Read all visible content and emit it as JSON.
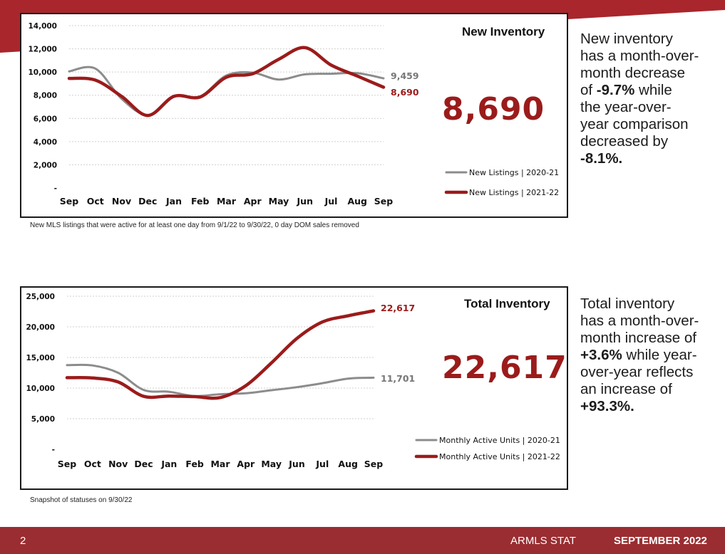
{
  "colors": {
    "accent_red": "#9b1b1b",
    "series_gray": "#8c8c8c",
    "band_red": "#a8262c",
    "footer_red": "#9a2d31"
  },
  "footer": {
    "page_number": "2",
    "brand": "ARMLS STAT",
    "month": "SEPTEMBER 2022"
  },
  "new_inventory": {
    "title": "New Inventory",
    "big_value": "8,690",
    "footnote": "New MLS listings that were active for at least one day from 9/1/22 to 9/30/22, 0 day DOM sales removed",
    "summary": {
      "line1": "New inventory",
      "line2": "has a month-over-",
      "line3": "month decrease",
      "line4_pre": "of ",
      "line4_bold": "-9.7%",
      "line4_post": " while",
      "line5": "the year-over-",
      "line6": "year comparison",
      "line7": "decreased by",
      "line8_bold": "-8.1%."
    }
  },
  "total_inventory": {
    "title": "Total Inventory",
    "big_value": "22,617",
    "footnote": "Snapshot of statuses on 9/30/22",
    "summary": {
      "line1": "Total inventory",
      "line2": "has a month-over-",
      "line3": "month increase of",
      "line4_bold": "+3.6%",
      "line4_post": " while year-",
      "line5": "over-year reflects",
      "line6": "an increase of",
      "line7_bold": "+93.3%."
    }
  },
  "chart_data": [
    {
      "type": "line",
      "title": "New Inventory",
      "categories": [
        "Sep",
        "Oct",
        "Nov",
        "Dec",
        "Jan",
        "Feb",
        "Mar",
        "Apr",
        "May",
        "Jun",
        "Jul",
        "Aug",
        "Sep"
      ],
      "ylim": [
        0,
        14000
      ],
      "yticks": [
        0,
        2000,
        4000,
        6000,
        8000,
        10000,
        12000,
        14000
      ],
      "ytick_labels": [
        "-",
        "2,000",
        "4,000",
        "6,000",
        "8,000",
        "10,000",
        "12,000",
        "14,000"
      ],
      "grid": true,
      "legend_position": "bottom-right",
      "series": [
        {
          "name": "New Listings | 2020-21",
          "color": "#8c8c8c",
          "values": [
            10050,
            10300,
            7700,
            6300,
            7900,
            7900,
            9700,
            9950,
            9350,
            9800,
            9850,
            9900,
            9459
          ],
          "end_label": "9,459"
        },
        {
          "name": "New Listings | 2021-22",
          "color": "#9b1b1b",
          "values": [
            9450,
            9300,
            7900,
            6250,
            7900,
            7850,
            9550,
            9850,
            11100,
            12100,
            10600,
            9650,
            8690
          ],
          "end_label": "8,690"
        }
      ]
    },
    {
      "type": "line",
      "title": "Total Inventory",
      "categories": [
        "Sep",
        "Oct",
        "Nov",
        "Dec",
        "Jan",
        "Feb",
        "Mar",
        "Apr",
        "May",
        "Jun",
        "Jul",
        "Aug",
        "Sep"
      ],
      "ylim": [
        0,
        25000
      ],
      "yticks": [
        0,
        5000,
        10000,
        15000,
        20000,
        25000
      ],
      "ytick_labels": [
        "-",
        "5,000",
        "10,000",
        "15,000",
        "20,000",
        "25,000"
      ],
      "grid": true,
      "legend_position": "bottom-right",
      "series": [
        {
          "name": "Monthly Active Units | 2020-21",
          "color": "#8c8c8c",
          "values": [
            13750,
            13700,
            12500,
            9700,
            9400,
            8700,
            9000,
            9150,
            9650,
            10150,
            10800,
            11550,
            11701
          ],
          "end_label": "11,701"
        },
        {
          "name": "Monthly Active Units | 2021-22",
          "color": "#9b1b1b",
          "values": [
            11700,
            11650,
            11000,
            8650,
            8700,
            8600,
            8450,
            10400,
            14100,
            18100,
            20800,
            21800,
            22617
          ],
          "end_label": "22,617"
        }
      ]
    }
  ]
}
